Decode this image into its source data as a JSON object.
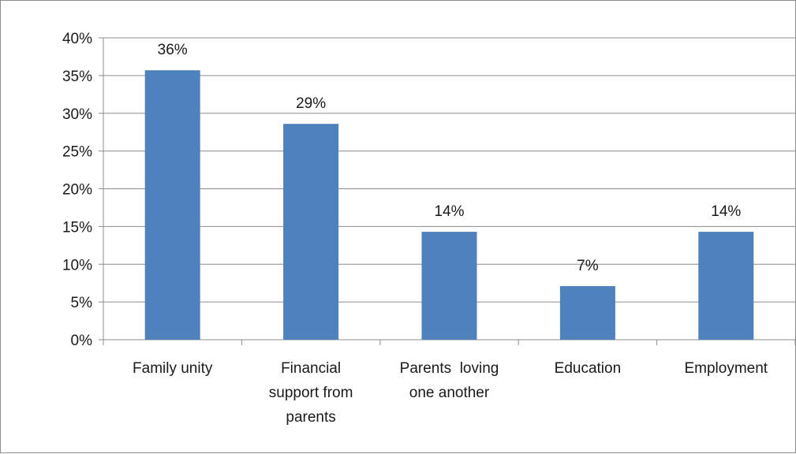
{
  "chart_data": {
    "type": "bar",
    "title": "",
    "xlabel": "",
    "ylabel": "",
    "categories": [
      [
        "Family unity"
      ],
      [
        "Financial",
        "support from",
        "parents"
      ],
      [
        "Parents  loving",
        "one another"
      ],
      [
        "Education"
      ],
      [
        "Employment"
      ]
    ],
    "values": [
      0.357,
      0.286,
      0.143,
      0.071,
      0.143
    ],
    "data_labels": [
      "36%",
      "29%",
      "14%",
      "7%",
      "14%"
    ],
    "ylim": [
      0,
      0.4
    ],
    "y_ticks": [
      {
        "value": 0.0,
        "label": "0%"
      },
      {
        "value": 0.05,
        "label": "5%"
      },
      {
        "value": 0.1,
        "label": "10%"
      },
      {
        "value": 0.15,
        "label": "15%"
      },
      {
        "value": 0.2,
        "label": "20%"
      },
      {
        "value": 0.25,
        "label": "25%"
      },
      {
        "value": 0.3,
        "label": "30%"
      },
      {
        "value": 0.35,
        "label": "35%"
      },
      {
        "value": 0.4,
        "label": "40%"
      }
    ],
    "grid": true,
    "legend": "none",
    "colors": {
      "bar": "#4f81bd",
      "grid": "#8c8c8c",
      "axis": "#8c8c8c",
      "text": "#1a1a1a"
    }
  }
}
